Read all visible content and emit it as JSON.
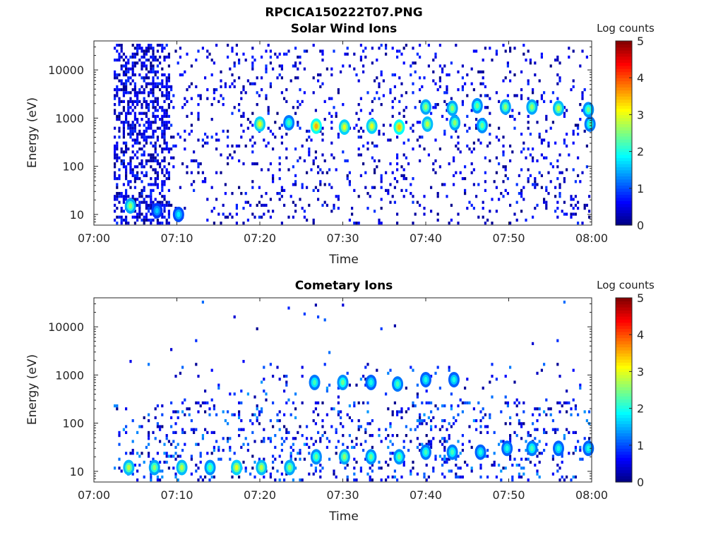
{
  "figure": {
    "title": "RPCICA150222T07.PNG"
  },
  "colors": {
    "colormap": [
      "#00007f",
      "#0000ff",
      "#007fff",
      "#00ffff",
      "#7fff7f",
      "#ffff00",
      "#ff7f00",
      "#ff0000",
      "#7f0000"
    ],
    "axis": "#262626",
    "background": "#ffffff"
  },
  "chart_data": [
    {
      "type": "heatmap",
      "title": "Solar Wind Ions",
      "xlabel": "Time",
      "ylabel": "Energy (eV)",
      "x_ticks": [
        "07:00",
        "07:10",
        "07:20",
        "07:30",
        "07:40",
        "07:50",
        "08:00"
      ],
      "xlim_minutes": [
        0,
        60
      ],
      "y_scale": "log",
      "y_ticks": [
        "10",
        "100",
        "1000",
        "10000"
      ],
      "ylim_eV": [
        6,
        40000
      ],
      "colorbar": {
        "label": "Log counts",
        "ticks": [
          "0",
          "1",
          "2",
          "3",
          "4",
          "5"
        ],
        "range": [
          0,
          5
        ]
      },
      "features": [
        {
          "time_min": 20.0,
          "energy_eV": 750,
          "log_counts": 3.0
        },
        {
          "time_min": 23.5,
          "energy_eV": 800,
          "log_counts": 2.2
        },
        {
          "time_min": 26.8,
          "energy_eV": 680,
          "log_counts": 3.5
        },
        {
          "time_min": 30.2,
          "energy_eV": 650,
          "log_counts": 3.0
        },
        {
          "time_min": 33.5,
          "energy_eV": 680,
          "log_counts": 3.0
        },
        {
          "time_min": 36.8,
          "energy_eV": 650,
          "log_counts": 3.4
        },
        {
          "time_min": 40.2,
          "energy_eV": 750,
          "log_counts": 2.8
        },
        {
          "time_min": 43.5,
          "energy_eV": 800,
          "log_counts": 2.6
        },
        {
          "time_min": 46.8,
          "energy_eV": 700,
          "log_counts": 2.4
        },
        {
          "time_min": 40.0,
          "energy_eV": 1700,
          "log_counts": 2.6
        },
        {
          "time_min": 43.2,
          "energy_eV": 1600,
          "log_counts": 2.6
        },
        {
          "time_min": 46.2,
          "energy_eV": 1800,
          "log_counts": 2.4
        },
        {
          "time_min": 49.6,
          "energy_eV": 1700,
          "log_counts": 2.6
        },
        {
          "time_min": 52.8,
          "energy_eV": 1700,
          "log_counts": 2.6
        },
        {
          "time_min": 56.0,
          "energy_eV": 1600,
          "log_counts": 2.8
        },
        {
          "time_min": 59.6,
          "energy_eV": 1500,
          "log_counts": 2.4
        },
        {
          "time_min": 59.8,
          "energy_eV": 750,
          "log_counts": 2.2
        },
        {
          "time_min": 4.4,
          "energy_eV": 15,
          "log_counts": 2.6
        },
        {
          "time_min": 7.6,
          "energy_eV": 12,
          "log_counts": 1.6
        },
        {
          "time_min": 10.2,
          "energy_eV": 10,
          "log_counts": 1.8
        }
      ]
    },
    {
      "type": "heatmap",
      "title": "Cometary Ions",
      "xlabel": "Time",
      "ylabel": "Energy (eV)",
      "x_ticks": [
        "07:00",
        "07:10",
        "07:20",
        "07:30",
        "07:40",
        "07:50",
        "08:00"
      ],
      "xlim_minutes": [
        0,
        60
      ],
      "y_scale": "log",
      "y_ticks": [
        "10",
        "100",
        "1000",
        "10000"
      ],
      "ylim_eV": [
        6,
        40000
      ],
      "colorbar": {
        "label": "Log counts",
        "ticks": [
          "0",
          "1",
          "2",
          "3",
          "4",
          "5"
        ],
        "range": [
          0,
          5
        ]
      },
      "features": [
        {
          "time_min": 4.2,
          "energy_eV": 12,
          "log_counts": 2.8
        },
        {
          "time_min": 7.3,
          "energy_eV": 12,
          "log_counts": 2.6
        },
        {
          "time_min": 10.6,
          "energy_eV": 12,
          "log_counts": 2.8
        },
        {
          "time_min": 14.0,
          "energy_eV": 12,
          "log_counts": 2.4
        },
        {
          "time_min": 17.2,
          "energy_eV": 12,
          "log_counts": 3.0
        },
        {
          "time_min": 20.2,
          "energy_eV": 12,
          "log_counts": 2.8
        },
        {
          "time_min": 23.6,
          "energy_eV": 12,
          "log_counts": 2.6
        },
        {
          "time_min": 26.8,
          "energy_eV": 20,
          "log_counts": 2.4
        },
        {
          "time_min": 30.2,
          "energy_eV": 20,
          "log_counts": 2.6
        },
        {
          "time_min": 33.4,
          "energy_eV": 20,
          "log_counts": 2.4
        },
        {
          "time_min": 36.8,
          "energy_eV": 20,
          "log_counts": 2.4
        },
        {
          "time_min": 40.0,
          "energy_eV": 25,
          "log_counts": 2.2
        },
        {
          "time_min": 43.2,
          "energy_eV": 25,
          "log_counts": 2.2
        },
        {
          "time_min": 46.6,
          "energy_eV": 25,
          "log_counts": 2.0
        },
        {
          "time_min": 49.8,
          "energy_eV": 30,
          "log_counts": 2.0
        },
        {
          "time_min": 52.8,
          "energy_eV": 30,
          "log_counts": 2.2
        },
        {
          "time_min": 56.0,
          "energy_eV": 30,
          "log_counts": 2.0
        },
        {
          "time_min": 59.6,
          "energy_eV": 30,
          "log_counts": 2.0
        },
        {
          "time_min": 26.6,
          "energy_eV": 700,
          "log_counts": 2.2
        },
        {
          "time_min": 30.0,
          "energy_eV": 700,
          "log_counts": 2.4
        },
        {
          "time_min": 33.4,
          "energy_eV": 700,
          "log_counts": 2.0
        },
        {
          "time_min": 36.6,
          "energy_eV": 650,
          "log_counts": 2.2
        },
        {
          "time_min": 40.0,
          "energy_eV": 800,
          "log_counts": 2.0
        },
        {
          "time_min": 43.4,
          "energy_eV": 800,
          "log_counts": 2.0
        }
      ]
    }
  ]
}
